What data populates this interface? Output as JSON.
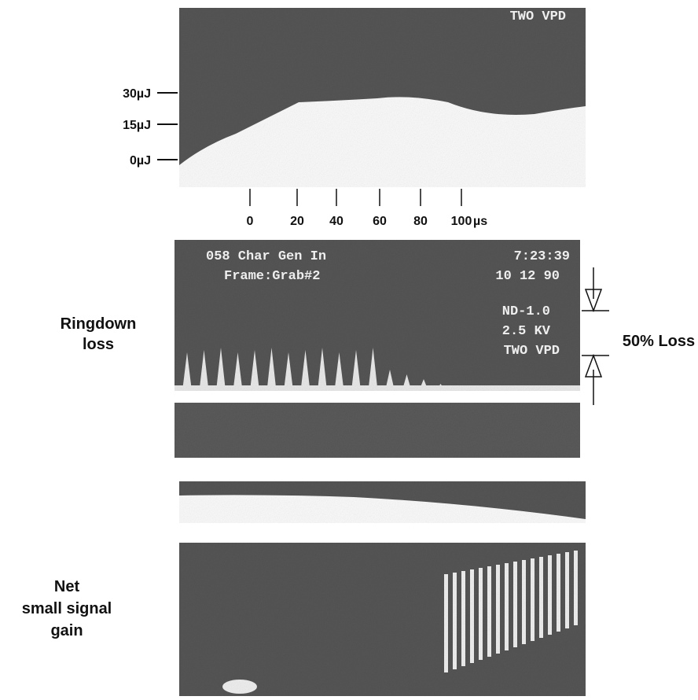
{
  "energy_axis": {
    "labels": [
      "30µJ",
      "15µJ",
      "0µJ"
    ]
  },
  "top_screen": {
    "text": "TWO VPD"
  },
  "time_axis": {
    "ticks": [
      0,
      20,
      40,
      60,
      80,
      100
    ],
    "unit": "µs"
  },
  "ringdown": {
    "label_lines": [
      "Ringdown",
      "loss"
    ],
    "screen_lines": [
      "058 Char Gen In",
      "7:23:39",
      "Frame:Grab#2",
      "10 12 90",
      "ND-1.0",
      "2.5 KV",
      "TWO VPD"
    ],
    "loss_label": "50% Loss"
  },
  "gain": {
    "label_lines": [
      "Net",
      "small signal",
      "gain"
    ]
  }
}
